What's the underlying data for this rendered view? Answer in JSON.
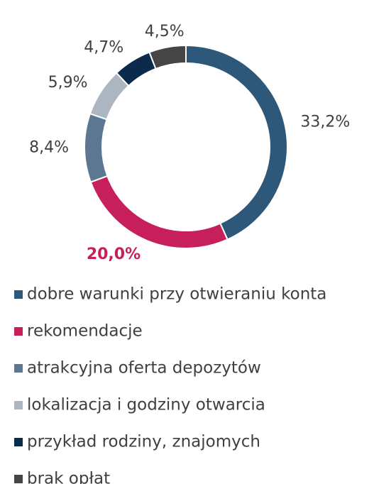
{
  "chart_data": {
    "type": "donut",
    "categories": [
      "dobre warunki przy otwieraniu konta",
      "rekomendacje",
      "atrakcyjna oferta depozytów",
      "lokalizacja i godziny otwarcia",
      "przykład rodziny, znajomych",
      "brak opłat"
    ],
    "values": [
      33.2,
      20.0,
      8.4,
      5.9,
      4.7,
      4.5
    ],
    "value_labels": [
      "33,2%",
      "20,0%",
      "8,4%",
      "5,9%",
      "4,7%",
      "4,5%"
    ],
    "colors": [
      "#2e5879",
      "#c61f5b",
      "#5e7790",
      "#abb6c1",
      "#0c2a4b",
      "#454545"
    ],
    "highlight_index": 1,
    "legend": "bottom"
  }
}
